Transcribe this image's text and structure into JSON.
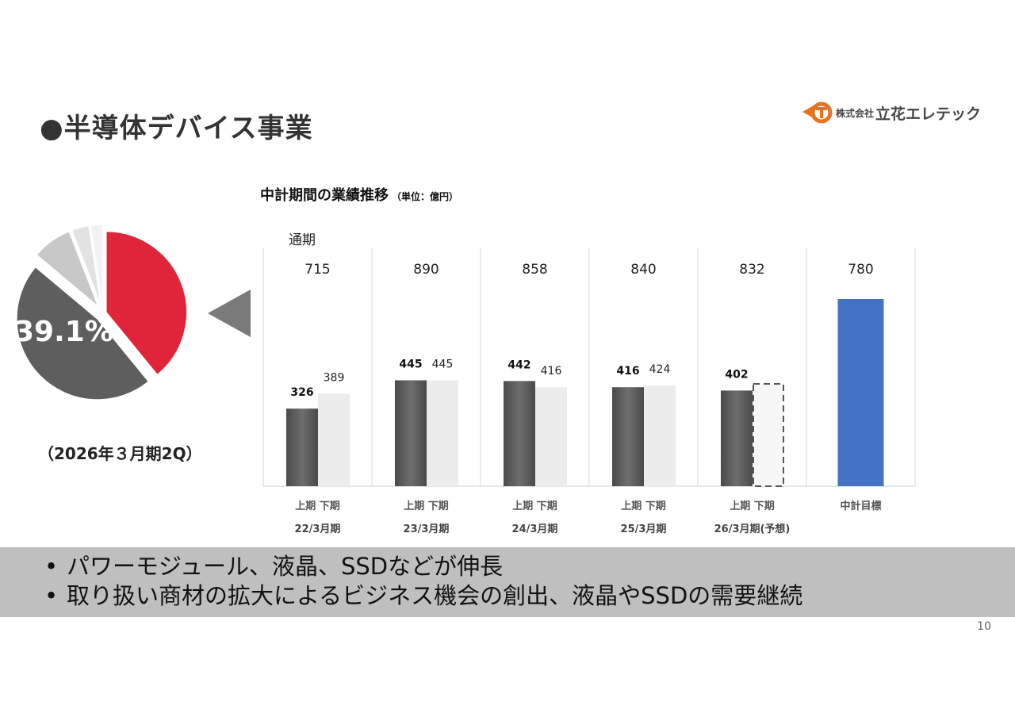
{
  "header": {
    "title": "●半導体デバイス事業",
    "logo_prefix": "株式会社",
    "logo_name": "立花エレテック"
  },
  "pie": {
    "value_label": "39.1%",
    "period_label": "（2026年３月期2Q）",
    "slices": [
      {
        "name": "semiconductor-devices",
        "share": 39.1,
        "color": "#e0253a"
      },
      {
        "name": "other-a",
        "share": 47.0,
        "color": "#5e5e5e"
      },
      {
        "name": "other-b",
        "share": 8.0,
        "color": "#c8c8c8"
      },
      {
        "name": "other-c",
        "share": 3.5,
        "color": "#e2e2e2"
      },
      {
        "name": "other-d",
        "share": 2.4,
        "color": "#f2f2f2"
      }
    ]
  },
  "chart_data": {
    "type": "bar",
    "title": "中計期間の業績推移",
    "unit_label": "（単位：億円）",
    "annual_label": "通期",
    "half_labels": "上期  下期",
    "series": [
      {
        "name": "上期",
        "values": [
          326,
          445,
          442,
          416,
          402
        ]
      },
      {
        "name": "下期",
        "values": [
          389,
          445,
          416,
          424,
          null
        ]
      }
    ],
    "groups": [
      {
        "label": "22/3月期",
        "annual": 715,
        "first_half": 326,
        "second_half": 389,
        "forecast": false
      },
      {
        "label": "23/3月期",
        "annual": 890,
        "first_half": 445,
        "second_half": 445,
        "forecast": false
      },
      {
        "label": "24/3月期",
        "annual": 858,
        "first_half": 442,
        "second_half": 416,
        "forecast": false
      },
      {
        "label": "25/3月期",
        "annual": 840,
        "first_half": 416,
        "second_half": 424,
        "forecast": false
      },
      {
        "label": "26/3月期(予想)",
        "annual": 832,
        "first_half": 402,
        "second_half": 430,
        "forecast": true
      }
    ],
    "target": {
      "label": "中計目標",
      "value": 780
    },
    "ylim": [
      0,
      860
    ],
    "colors": {
      "first_half": "#6e6e6e",
      "second_half": "#ececec",
      "target": "#4472c4"
    }
  },
  "bullets": [
    "パワーモジュール、液晶、SSDなどが伸長",
    "取り扱い商材の拡大によるビジネス機会の創出、液晶やSSDの需要継続"
  ],
  "bullet_glyph": "•",
  "page_number": "10"
}
